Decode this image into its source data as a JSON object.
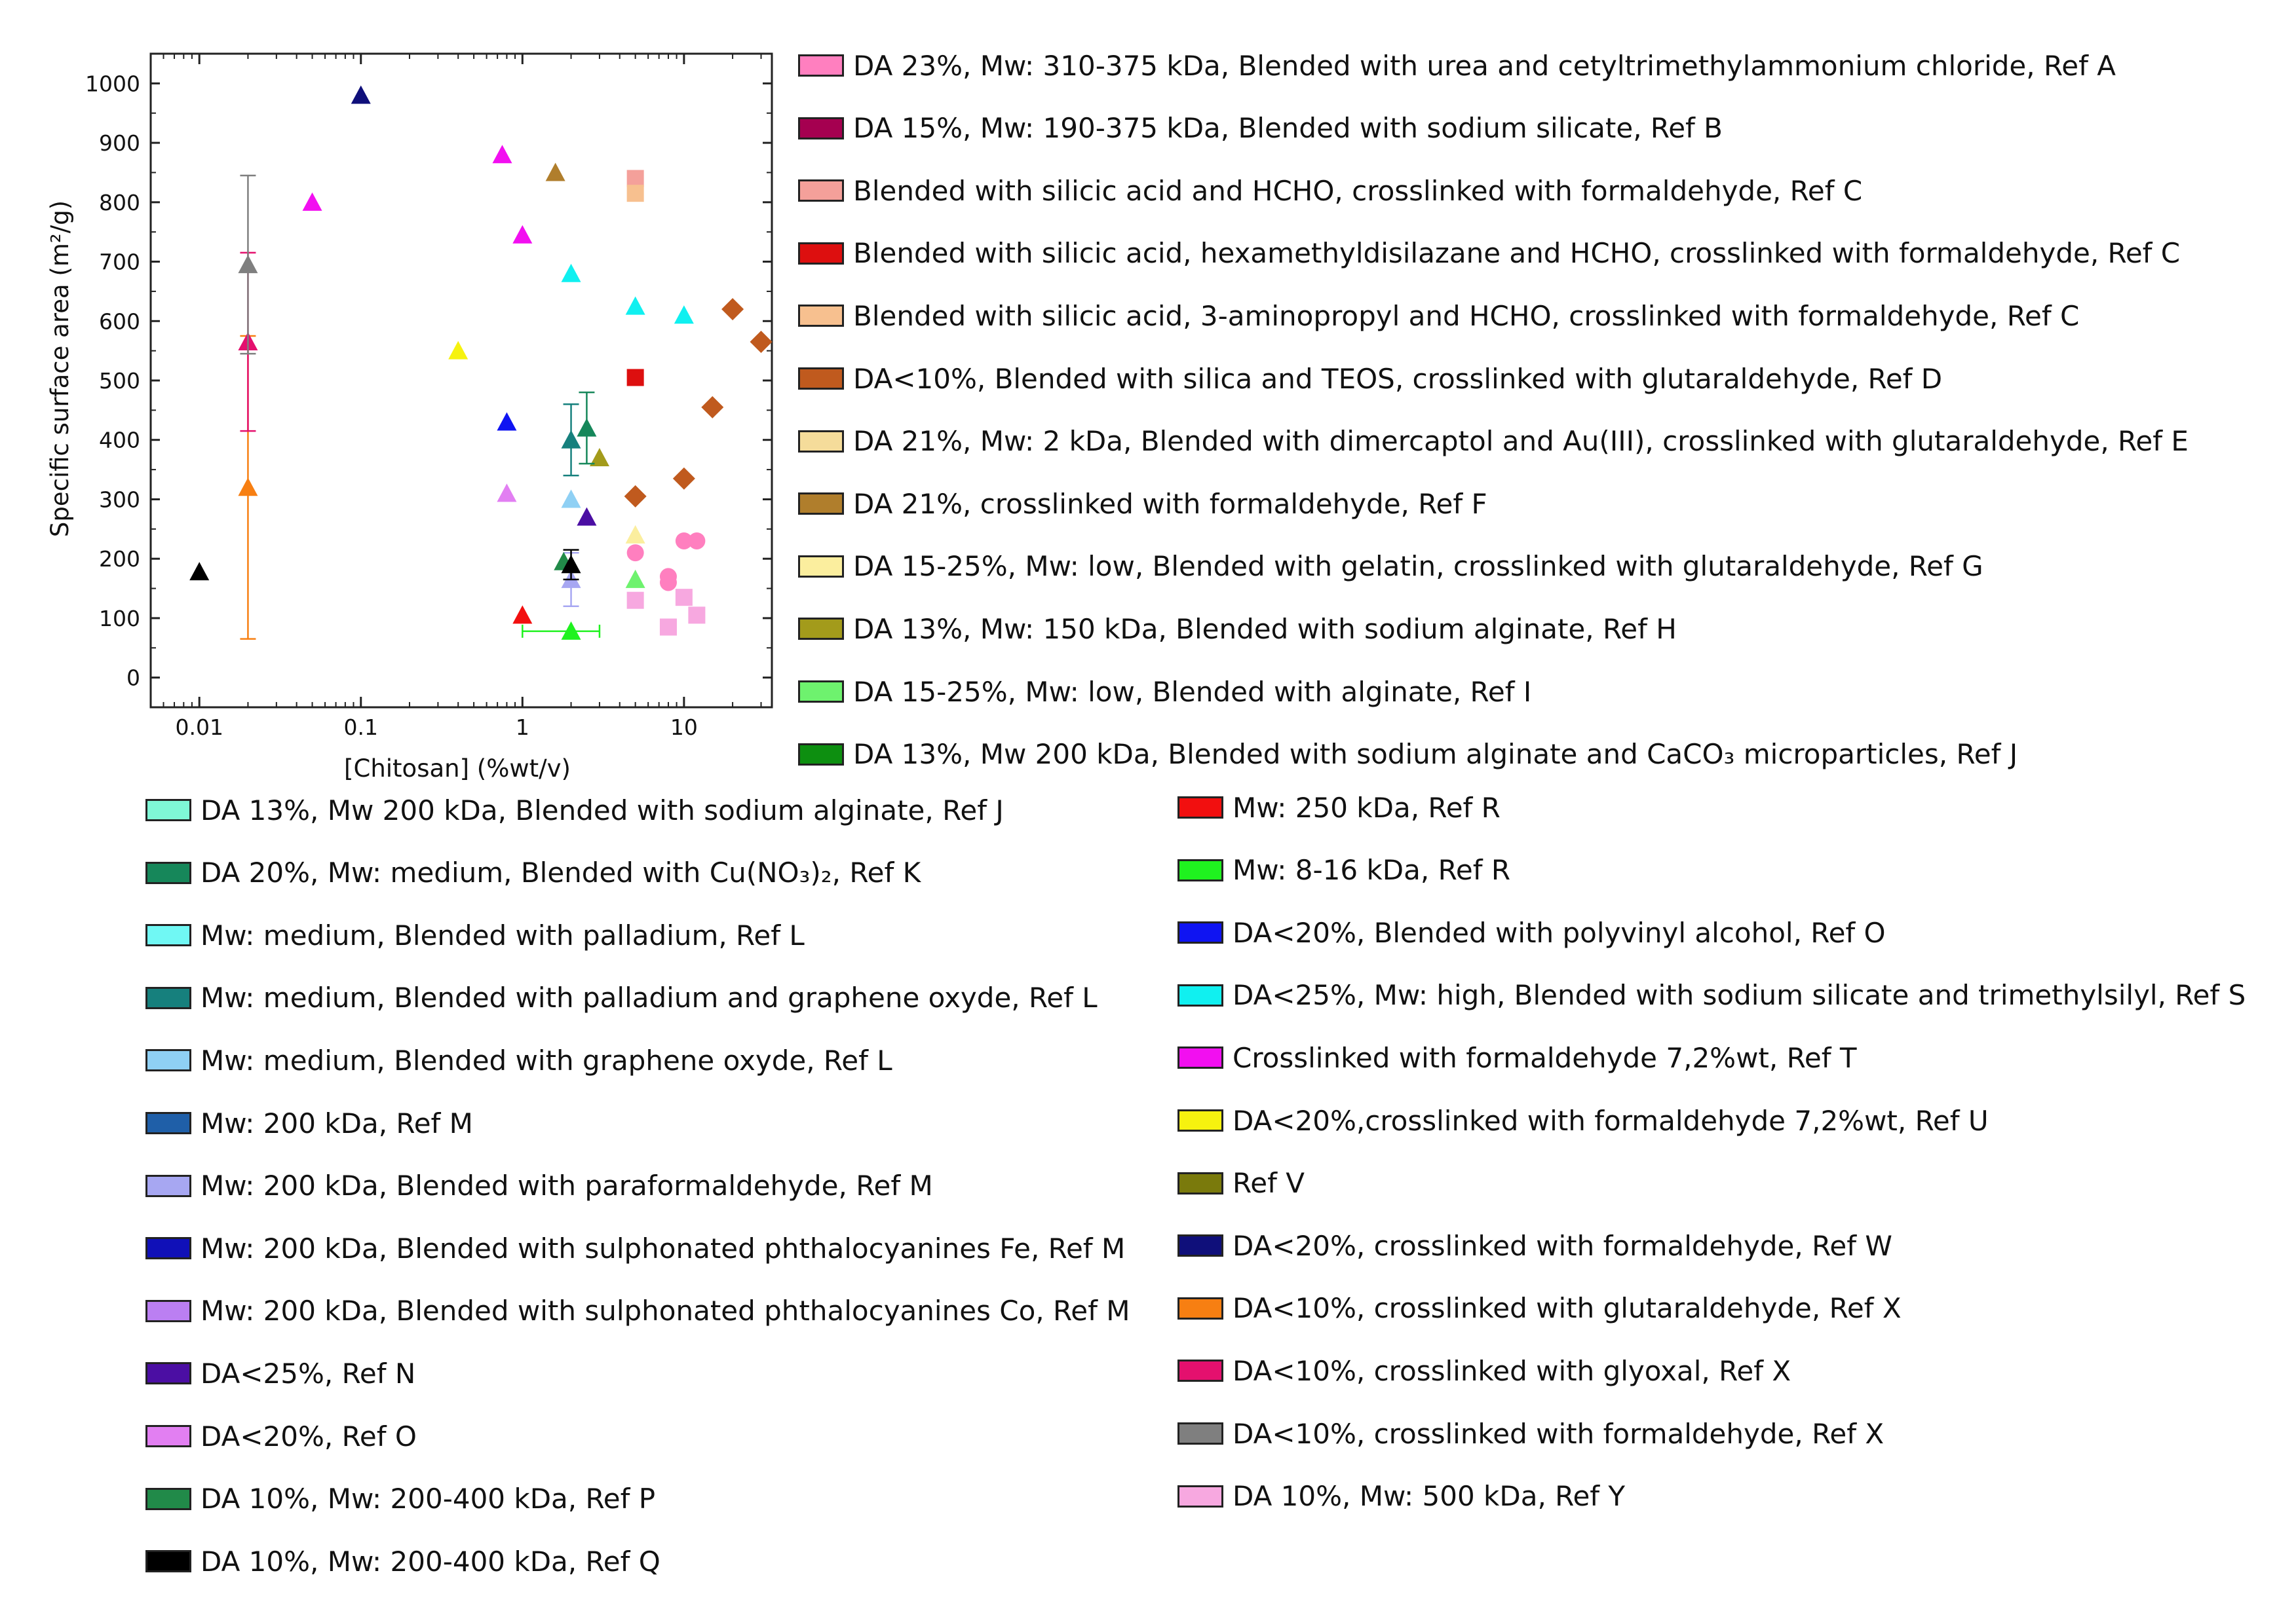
{
  "chart_data": {
    "type": "scatter",
    "title": "",
    "xlabel": "[Chitosan] (%wt/v)",
    "ylabel": "Specific surface area (m²/g)",
    "xscale": "log",
    "xlim": [
      0.005,
      35
    ],
    "ylim": [
      -50,
      1050
    ],
    "x_ticks": [
      0.01,
      0.1,
      1,
      10
    ],
    "x_tick_labels": [
      "0.01",
      "0.1",
      "1",
      "10"
    ],
    "y_ticks": [
      0,
      100,
      200,
      300,
      400,
      500,
      600,
      700,
      800,
      900,
      1000
    ],
    "grid": false,
    "series": [
      {
        "name": "DA 23%, Mw: 310-375 kDa, Blended with urea and cetyltrimethylammonium chloride, Ref A",
        "color": "#ff7fbf",
        "marker": "circle",
        "points": [
          {
            "x": 5,
            "y": 210
          },
          {
            "x": 8,
            "y": 170
          },
          {
            "x": 10,
            "y": 230
          },
          {
            "x": 12,
            "y": 230
          },
          {
            "x": 8,
            "y": 160
          }
        ]
      },
      {
        "name": "DA 15%, Mw: 190-375 kDa, Blended with sodium silicate, Ref B",
        "color": "#a50050",
        "marker": "square",
        "points": []
      },
      {
        "name": "Blended with silicic acid and HCHO, crosslinked with formaldehyde, Ref C",
        "color": "#f4a09a",
        "marker": "square",
        "points": [
          {
            "x": 5,
            "y": 840
          }
        ]
      },
      {
        "name": "Blended with silicic acid, hexamethyldisilazane and HCHO, crosslinked with formaldehyde, Ref C",
        "color": "#dd0f0f",
        "marker": "square",
        "points": [
          {
            "x": 5,
            "y": 505
          }
        ]
      },
      {
        "name": "Blended with silicic acid, 3-aminopropyl and HCHO, crosslinked with formaldehyde, Ref C",
        "color": "#f7c08f",
        "marker": "square",
        "points": [
          {
            "x": 5,
            "y": 815
          }
        ]
      },
      {
        "name": "DA<10%, Blended with silica and TEOS, crosslinked with glutaraldehyde, Ref D",
        "color": "#c05a1e",
        "marker": "diamond",
        "points": [
          {
            "x": 5,
            "y": 305
          },
          {
            "x": 10,
            "y": 335
          },
          {
            "x": 15,
            "y": 455
          },
          {
            "x": 20,
            "y": 620
          },
          {
            "x": 30,
            "y": 565
          }
        ]
      },
      {
        "name": "DA 21%, Mw: 2 kDa, Blended with dimercaptol and Au(III), crosslinked with glutaraldehyde, Ref E",
        "color": "#f5dc9a",
        "marker": "triangle",
        "points": []
      },
      {
        "name": "DA 21%, crosslinked with formaldehyde, Ref F",
        "color": "#b07e2c",
        "marker": "triangle",
        "points": [
          {
            "x": 1.6,
            "y": 850
          }
        ]
      },
      {
        "name": "DA 15-25%, Mw: low, Blended with gelatin, crosslinked with glutaraldehyde, Ref G",
        "color": "#fbee9e",
        "marker": "triangle",
        "points": [
          {
            "x": 5,
            "y": 240
          }
        ]
      },
      {
        "name": "DA 13%, Mw: 150 kDa, Blended with sodium alginate, Ref H",
        "color": "#a39b1b",
        "marker": "triangle",
        "points": [
          {
            "x": 3,
            "y": 370
          }
        ]
      },
      {
        "name": "DA 15-25%, Mw: low, Blended with alginate, Ref I",
        "color": "#6ef26e",
        "marker": "triangle",
        "points": [
          {
            "x": 5,
            "y": 165
          }
        ]
      },
      {
        "name": "DA 13%, Mw 200 kDa, Blended with sodium alginate and CaCO₃ microparticles, Ref J",
        "color": "#0d8f10",
        "marker": "triangle",
        "points": []
      },
      {
        "name": "DA 13%, Mw 200 kDa, Blended with sodium alginate, Ref J",
        "color": "#7ff7d6",
        "marker": "triangle",
        "points": []
      },
      {
        "name": "DA 20%, Mw: medium, Blended with Cu(NO₃)₂, Ref K",
        "color": "#16875a",
        "marker": "triangle",
        "points": [
          {
            "x": 2.5,
            "y": 420,
            "err": 60
          }
        ]
      },
      {
        "name": "Mw: medium, Blended with palladium, Ref L",
        "color": "#70f8f4",
        "marker": "triangle",
        "points": []
      },
      {
        "name": "Mw: medium, Blended with palladium and graphene oxyde, Ref L",
        "color": "#16807d",
        "marker": "triangle",
        "points": [
          {
            "x": 2,
            "y": 400,
            "err": 60
          }
        ]
      },
      {
        "name": "Mw: medium, Blended with graphene oxyde, Ref L",
        "color": "#8fd0f4",
        "marker": "triangle",
        "points": [
          {
            "x": 2,
            "y": 300
          }
        ]
      },
      {
        "name": "Mw: 200 kDa, Ref M",
        "color": "#1f5fa8",
        "marker": "triangle",
        "points": []
      },
      {
        "name": "Mw: 200 kDa, Blended with paraformaldehyde, Ref M",
        "color": "#a7a7f2",
        "marker": "triangle",
        "points": [
          {
            "x": 2,
            "y": 165,
            "err": 45
          }
        ]
      },
      {
        "name": "Mw: 200 kDa, Blended with sulphonated phthalocyanines Fe, Ref M",
        "color": "#1010b8",
        "marker": "triangle",
        "points": []
      },
      {
        "name": "Mw: 200 kDa, Blended with sulphonated phthalocyanines Co, Ref M",
        "color": "#bb7ff2",
        "marker": "triangle",
        "points": []
      },
      {
        "name": "DA<25%, Ref N",
        "color": "#4b0ea3",
        "marker": "triangle",
        "points": [
          {
            "x": 2.5,
            "y": 270
          }
        ]
      },
      {
        "name": "DA<20%, Ref O",
        "color": "#e27ff2",
        "marker": "triangle",
        "points": [
          {
            "x": 0.8,
            "y": 310
          }
        ]
      },
      {
        "name": "DA 10%, Mw: 200-400 kDa, Ref P",
        "color": "#218a49",
        "marker": "triangle",
        "points": [
          {
            "x": 1.8,
            "y": 195
          }
        ]
      },
      {
        "name": "DA 10%, Mw: 200-400 kDa, Ref Q",
        "color": "#000000",
        "marker": "triangle",
        "points": [
          {
            "x": 0.01,
            "y": 178
          },
          {
            "x": 2,
            "y": 190,
            "err": 25
          }
        ]
      },
      {
        "name": "Mw: 250 kDa, Ref R",
        "color": "#f20f0f",
        "marker": "triangle",
        "points": [
          {
            "x": 1,
            "y": 105
          }
        ]
      },
      {
        "name": "Mw: 8-16 kDa, Ref R",
        "color": "#1ff21f",
        "marker": "triangle",
        "points": [
          {
            "x": 2,
            "y": 78,
            "xerr": [
              1,
              3
            ]
          }
        ]
      },
      {
        "name": "DA<20%, Blended with polyvinyl alcohol, Ref O",
        "color": "#0f14f2",
        "marker": "triangle",
        "points": [
          {
            "x": 0.8,
            "y": 430
          }
        ]
      },
      {
        "name": "DA<25%, Mw: high, Blended with sodium silicate and trimethylsilyl, Ref S",
        "color": "#10f0f0",
        "marker": "triangle",
        "points": [
          {
            "x": 2,
            "y": 680
          },
          {
            "x": 5,
            "y": 625
          },
          {
            "x": 10,
            "y": 610
          }
        ]
      },
      {
        "name": "Crosslinked with formaldehyde 7,2%wt, Ref T",
        "color": "#f20ff0",
        "marker": "triangle",
        "points": [
          {
            "x": 0.05,
            "y": 800
          },
          {
            "x": 0.75,
            "y": 880
          },
          {
            "x": 1,
            "y": 745
          }
        ]
      },
      {
        "name": "DA<20%,crosslinked with formaldehyde 7,2%wt, Ref U",
        "color": "#f6f20f",
        "marker": "triangle",
        "points": [
          {
            "x": 0.4,
            "y": 550
          }
        ]
      },
      {
        "name": "Ref V",
        "color": "#7a7a0c",
        "marker": "triangle",
        "points": []
      },
      {
        "name": "DA<20%, crosslinked with formaldehyde, Ref W",
        "color": "#0f0f7a",
        "marker": "triangle",
        "points": [
          {
            "x": 0.1,
            "y": 980
          }
        ]
      },
      {
        "name": "DA<10%, crosslinked with glutaraldehyde, Ref X",
        "color": "#f77f12",
        "marker": "triangle",
        "points": [
          {
            "x": 0.02,
            "y": 320,
            "err": 255
          }
        ]
      },
      {
        "name": "DA<10%, crosslinked with glyoxal, Ref X",
        "color": "#e4106e",
        "marker": "triangle",
        "points": [
          {
            "x": 0.02,
            "y": 565,
            "err": 150
          }
        ]
      },
      {
        "name": "DA<10%, crosslinked with formaldehyde, Ref X",
        "color": "#7f7f7f",
        "marker": "triangle",
        "points": [
          {
            "x": 0.02,
            "y": 695,
            "err": 150
          }
        ]
      },
      {
        "name": "DA 10%, Mw: 500 kDa, Ref Y",
        "color": "#f7a8e0",
        "marker": "square",
        "points": [
          {
            "x": 5,
            "y": 130
          },
          {
            "x": 8,
            "y": 85
          },
          {
            "x": 10,
            "y": 135
          },
          {
            "x": 12,
            "y": 105
          }
        ]
      }
    ]
  },
  "legend": {
    "top": [
      0,
      1,
      2,
      3,
      4,
      5,
      6,
      7,
      8,
      9,
      10,
      11
    ],
    "left": [
      12,
      13,
      14,
      15,
      16,
      17,
      18,
      19,
      20,
      21,
      22,
      23,
      24
    ],
    "right": [
      25,
      26,
      27,
      28,
      29,
      30,
      31,
      32,
      33,
      34,
      35,
      36
    ]
  }
}
